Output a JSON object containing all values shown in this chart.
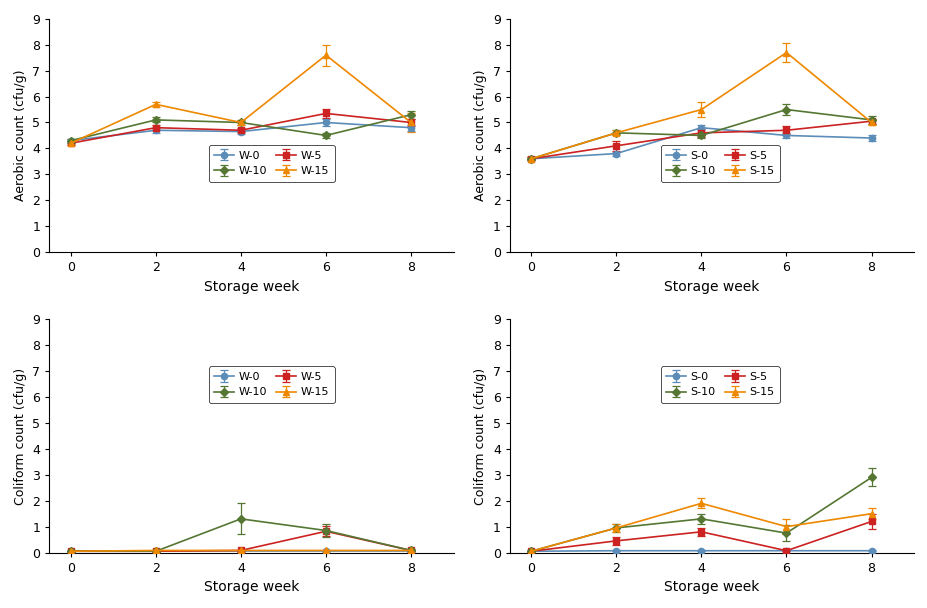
{
  "x": [
    0,
    2,
    4,
    6,
    8
  ],
  "top_left": {
    "ylabel": "Aerobic count (cfu/g)",
    "xlabel": "Storage week",
    "ylim": [
      0,
      9
    ],
    "series": {
      "W-0": {
        "y": [
          4.3,
          4.7,
          4.65,
          5.0,
          4.8
        ],
        "yerr": [
          0.08,
          0.1,
          0.08,
          0.12,
          0.12
        ],
        "color": "#5B8DB8",
        "marker": "o"
      },
      "W-5": {
        "y": [
          4.2,
          4.8,
          4.7,
          5.35,
          5.0
        ],
        "yerr": [
          0.08,
          0.1,
          0.08,
          0.18,
          0.12
        ],
        "color": "#CC2222",
        "marker": "s"
      },
      "W-10": {
        "y": [
          4.3,
          5.1,
          5.0,
          4.5,
          5.3
        ],
        "yerr": [
          0.08,
          0.1,
          0.08,
          0.1,
          0.15
        ],
        "color": "#557733",
        "marker": "D"
      },
      "W-15": {
        "y": [
          4.2,
          5.7,
          5.0,
          7.6,
          5.0
        ],
        "yerr": [
          0.08,
          0.1,
          0.08,
          0.4,
          0.35
        ],
        "color": "#EE8800",
        "marker": "^"
      }
    }
  },
  "top_right": {
    "ylabel": "Aerobic count (cfu/g)",
    "xlabel": "Storage week",
    "ylim": [
      0,
      9
    ],
    "series": {
      "S-0": {
        "y": [
          3.6,
          3.8,
          4.8,
          4.5,
          4.4
        ],
        "yerr": [
          0.05,
          0.08,
          0.1,
          0.1,
          0.1
        ],
        "color": "#5B8DB8",
        "marker": "o"
      },
      "S-5": {
        "y": [
          3.6,
          4.1,
          4.6,
          4.7,
          5.05
        ],
        "yerr": [
          0.05,
          0.2,
          0.15,
          0.15,
          0.1
        ],
        "color": "#CC2222",
        "marker": "s"
      },
      "S-10": {
        "y": [
          3.6,
          4.6,
          4.5,
          5.5,
          5.1
        ],
        "yerr": [
          0.05,
          0.1,
          0.1,
          0.2,
          0.15
        ],
        "color": "#557733",
        "marker": "D"
      },
      "S-15": {
        "y": [
          3.6,
          4.6,
          5.5,
          7.7,
          5.0
        ],
        "yerr": [
          0.05,
          0.1,
          0.3,
          0.35,
          0.1
        ],
        "color": "#EE8800",
        "marker": "^"
      }
    }
  },
  "bottom_left": {
    "ylabel": "Coliform count (cfu/g)",
    "xlabel": "Storage week",
    "ylim": [
      0,
      9
    ],
    "series": {
      "W-0": {
        "y": [
          0.05,
          0.05,
          0.05,
          0.05,
          0.05
        ],
        "yerr": [
          0.02,
          0.02,
          0.02,
          0.02,
          0.02
        ],
        "color": "#5B8DB8",
        "marker": "o"
      },
      "W-5": {
        "y": [
          0.05,
          0.05,
          0.08,
          0.82,
          0.08
        ],
        "yerr": [
          0.02,
          0.02,
          0.02,
          0.2,
          0.02
        ],
        "color": "#CC2222",
        "marker": "s"
      },
      "W-10": {
        "y": [
          0.05,
          0.05,
          1.3,
          0.85,
          0.08
        ],
        "yerr": [
          0.02,
          0.02,
          0.6,
          0.25,
          0.02
        ],
        "color": "#557733",
        "marker": "D"
      },
      "W-15": {
        "y": [
          0.05,
          0.08,
          0.08,
          0.08,
          0.08
        ],
        "yerr": [
          0.02,
          0.02,
          0.02,
          0.02,
          0.02
        ],
        "color": "#EE8800",
        "marker": "^"
      }
    }
  },
  "bottom_right": {
    "ylabel": "Coliform count (cfu/g)",
    "xlabel": "Storage week",
    "ylim": [
      0,
      9
    ],
    "series": {
      "S-0": {
        "y": [
          0.05,
          0.07,
          0.07,
          0.07,
          0.07
        ],
        "yerr": [
          0.02,
          0.02,
          0.02,
          0.02,
          0.02
        ],
        "color": "#5B8DB8",
        "marker": "o"
      },
      "S-5": {
        "y": [
          0.05,
          0.45,
          0.8,
          0.07,
          1.2
        ],
        "yerr": [
          0.02,
          0.15,
          0.15,
          0.02,
          0.3
        ],
        "color": "#CC2222",
        "marker": "s"
      },
      "S-10": {
        "y": [
          0.05,
          0.95,
          1.3,
          0.75,
          2.9
        ],
        "yerr": [
          0.02,
          0.15,
          0.2,
          0.3,
          0.35
        ],
        "color": "#557733",
        "marker": "D"
      },
      "S-15": {
        "y": [
          0.05,
          0.95,
          1.9,
          1.0,
          1.5
        ],
        "yerr": [
          0.02,
          0.15,
          0.2,
          0.3,
          0.2
        ],
        "color": "#EE8800",
        "marker": "^"
      }
    }
  }
}
